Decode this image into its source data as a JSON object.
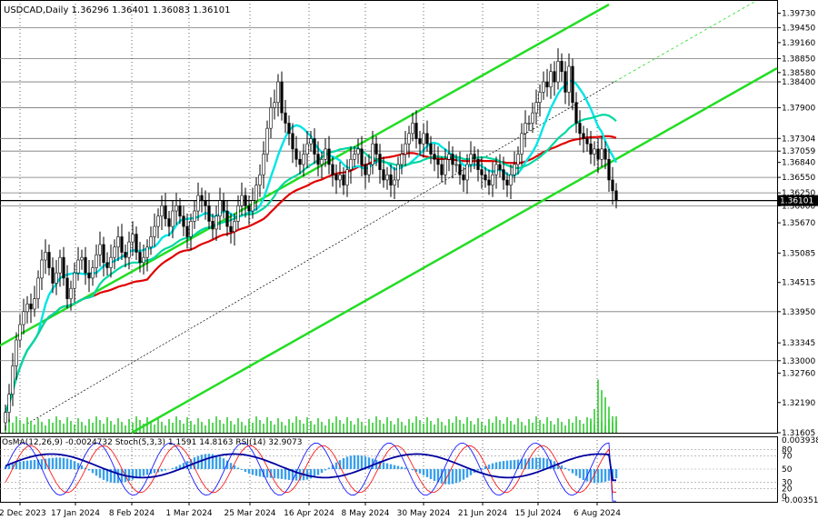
{
  "header": {
    "symbol_line": "USDCAD,Daily  1.36296 1.36401 1.36083 1.36101"
  },
  "indicator_header": "OsMA(12,26,9) -0.0024732  Stoch(5,3,3) 1.1591 14.8163  RSI(14) 32.9073",
  "chart_data": {
    "type": "candlestick",
    "symbol": "USDCAD",
    "timeframe": "Daily",
    "ohlc_last": {
      "open": 1.36296,
      "high": 1.36401,
      "low": 1.36083,
      "close": 1.36101
    },
    "x_tick_labels": [
      "12 Dec 2023",
      "17 Jan 2024",
      "8 Feb 2024",
      "1 Mar 2024",
      "25 Mar 2024",
      "16 Apr 2024",
      "8 May 2024",
      "30 May 2024",
      "21 Jun 2024",
      "15 Jul 2024",
      "6 Aug 2024"
    ],
    "y_tick_labels": [
      "1.39730",
      "1.39450",
      "1.39160",
      "1.38850",
      "1.38580",
      "1.38400",
      "1.37900",
      "1.37304",
      "1.37059",
      "1.36840",
      "1.36550",
      "1.36250",
      "1.36000",
      "1.35670",
      "1.35085",
      "1.34515",
      "1.33950",
      "1.33345",
      "1.33000",
      "1.32760",
      "1.32190",
      "1.31605"
    ],
    "y_range": [
      1.31605,
      1.3995
    ],
    "closes": [
      1.32,
      1.3235,
      1.329,
      1.334,
      1.337,
      1.3395,
      1.341,
      1.34,
      1.342,
      1.346,
      1.3495,
      1.351,
      1.348,
      1.345,
      1.347,
      1.35,
      1.346,
      1.342,
      1.344,
      1.347,
      1.3495,
      1.35,
      1.347,
      1.346,
      1.348,
      1.3505,
      1.3525,
      1.349,
      1.348,
      1.35,
      1.352,
      1.354,
      1.351,
      1.35,
      1.353,
      1.3545,
      1.351,
      1.349,
      1.35,
      1.352,
      1.354,
      1.356,
      1.358,
      1.36,
      1.3575,
      1.356,
      1.359,
      1.36,
      1.358,
      1.356,
      1.354,
      1.357,
      1.359,
      1.362,
      1.361,
      1.36,
      1.357,
      1.3555,
      1.358,
      1.361,
      1.359,
      1.356,
      1.355,
      1.357,
      1.36,
      1.362,
      1.36,
      1.359,
      1.361,
      1.364,
      1.366,
      1.37,
      1.375,
      1.379,
      1.38,
      1.384,
      1.378,
      1.376,
      1.374,
      1.371,
      1.369,
      1.368,
      1.37,
      1.372,
      1.373,
      1.37,
      1.368,
      1.369,
      1.371,
      1.368,
      1.366,
      1.365,
      1.366,
      1.364,
      1.367,
      1.369,
      1.37,
      1.371,
      1.368,
      1.366,
      1.368,
      1.372,
      1.37,
      1.367,
      1.365,
      1.366,
      1.364,
      1.365,
      1.368,
      1.37,
      1.372,
      1.374,
      1.376,
      1.373,
      1.372,
      1.374,
      1.372,
      1.37,
      1.369,
      1.368,
      1.366,
      1.369,
      1.37,
      1.368,
      1.368,
      1.366,
      1.365,
      1.368,
      1.37,
      1.369,
      1.367,
      1.366,
      1.365,
      1.364,
      1.366,
      1.368,
      1.367,
      1.365,
      1.364,
      1.366,
      1.368,
      1.37,
      1.374,
      1.376,
      1.376,
      1.378,
      1.38,
      1.382,
      1.384,
      1.383,
      1.386,
      1.384,
      1.388,
      1.386,
      1.382,
      1.387,
      1.38,
      1.376,
      1.374,
      1.373,
      1.372,
      1.37,
      1.371,
      1.369,
      1.371,
      1.369,
      1.365,
      1.3629,
      1.361
    ],
    "volume_end_spike": [
      12,
      20,
      45,
      36,
      30,
      22,
      14,
      10
    ],
    "moving_averages": [
      {
        "color": "#e00000",
        "label": "MA200"
      },
      {
        "color": "#00e5e5",
        "label": "MA50"
      },
      {
        "color": "#00d7a0",
        "label": "MA144"
      }
    ],
    "channel": {
      "color": "#22dd22"
    },
    "indicators": {
      "osma": {
        "value": -0.0024732,
        "ylim": [
          -0.00351,
          0.003938
        ]
      },
      "stoch": {
        "k": 1.1591,
        "d": 14.8163,
        "levels": [
          20,
          80
        ]
      },
      "rsi": {
        "value": 32.9073,
        "levels": [
          30,
          70
        ]
      }
    },
    "indicator_axis_labels": [
      "0.003938",
      "80",
      "70",
      "50",
      "30",
      "20",
      "0",
      "-0.003510"
    ]
  },
  "colors": {
    "candle": "#000000",
    "background": "#ffffff",
    "grid": "#000000",
    "osma_bar": "#3aa0e8",
    "stoch_main": "#1a1aff",
    "stoch_signal": "#ff0000",
    "rsi_line": "#0000a0",
    "label_fill_white": "#ffffff"
  }
}
